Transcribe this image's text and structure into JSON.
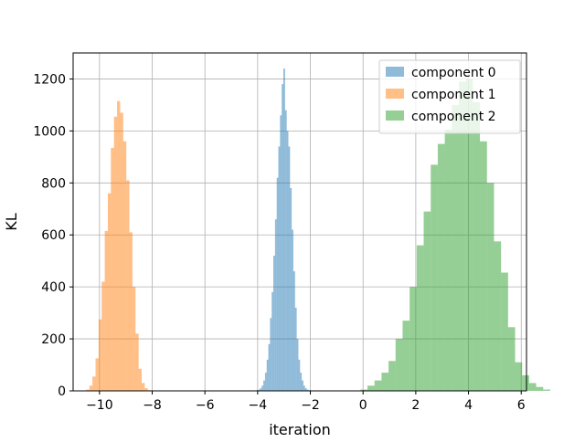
{
  "chart_data": {
    "type": "histogram",
    "xlabel": "iteration",
    "ylabel": "KL",
    "xlim": [
      -11.0,
      6.2
    ],
    "ylim": [
      0,
      1300
    ],
    "xticks": [
      -10,
      -8,
      -6,
      -4,
      -2,
      0,
      2,
      4,
      6
    ],
    "yticks": [
      0,
      200,
      400,
      600,
      800,
      1000,
      1200
    ],
    "grid": true,
    "legend_position": "top-right",
    "series": [
      {
        "name": "component 0",
        "color": "#1f77b4",
        "bin_start": -4.1,
        "bin_width": 0.0633,
        "counts": [
          2,
          3,
          5,
          10,
          20,
          40,
          70,
          120,
          180,
          280,
          380,
          520,
          660,
          820,
          940,
          1060,
          1180,
          1240,
          1080,
          1000,
          940,
          780,
          620,
          460,
          320,
          200,
          120,
          70,
          40,
          20,
          10,
          5,
          3,
          2
        ]
      },
      {
        "name": "component 1",
        "color": "#ff7f0e",
        "bin_start": -10.5,
        "bin_width": 0.1167,
        "counts": [
          5,
          20,
          55,
          125,
          275,
          420,
          615,
          760,
          935,
          1055,
          1115,
          1070,
          960,
          810,
          610,
          400,
          220,
          85,
          30,
          10,
          3,
          1
        ]
      },
      {
        "name": "component 2",
        "color": "#2ca02c",
        "bin_start": -0.1,
        "bin_width": 0.2667,
        "counts": [
          5,
          20,
          40,
          70,
          115,
          200,
          270,
          400,
          560,
          690,
          870,
          950,
          1005,
          1100,
          1190,
          1200,
          1110,
          960,
          800,
          575,
          455,
          245,
          110,
          60,
          30,
          15,
          5
        ]
      }
    ]
  }
}
